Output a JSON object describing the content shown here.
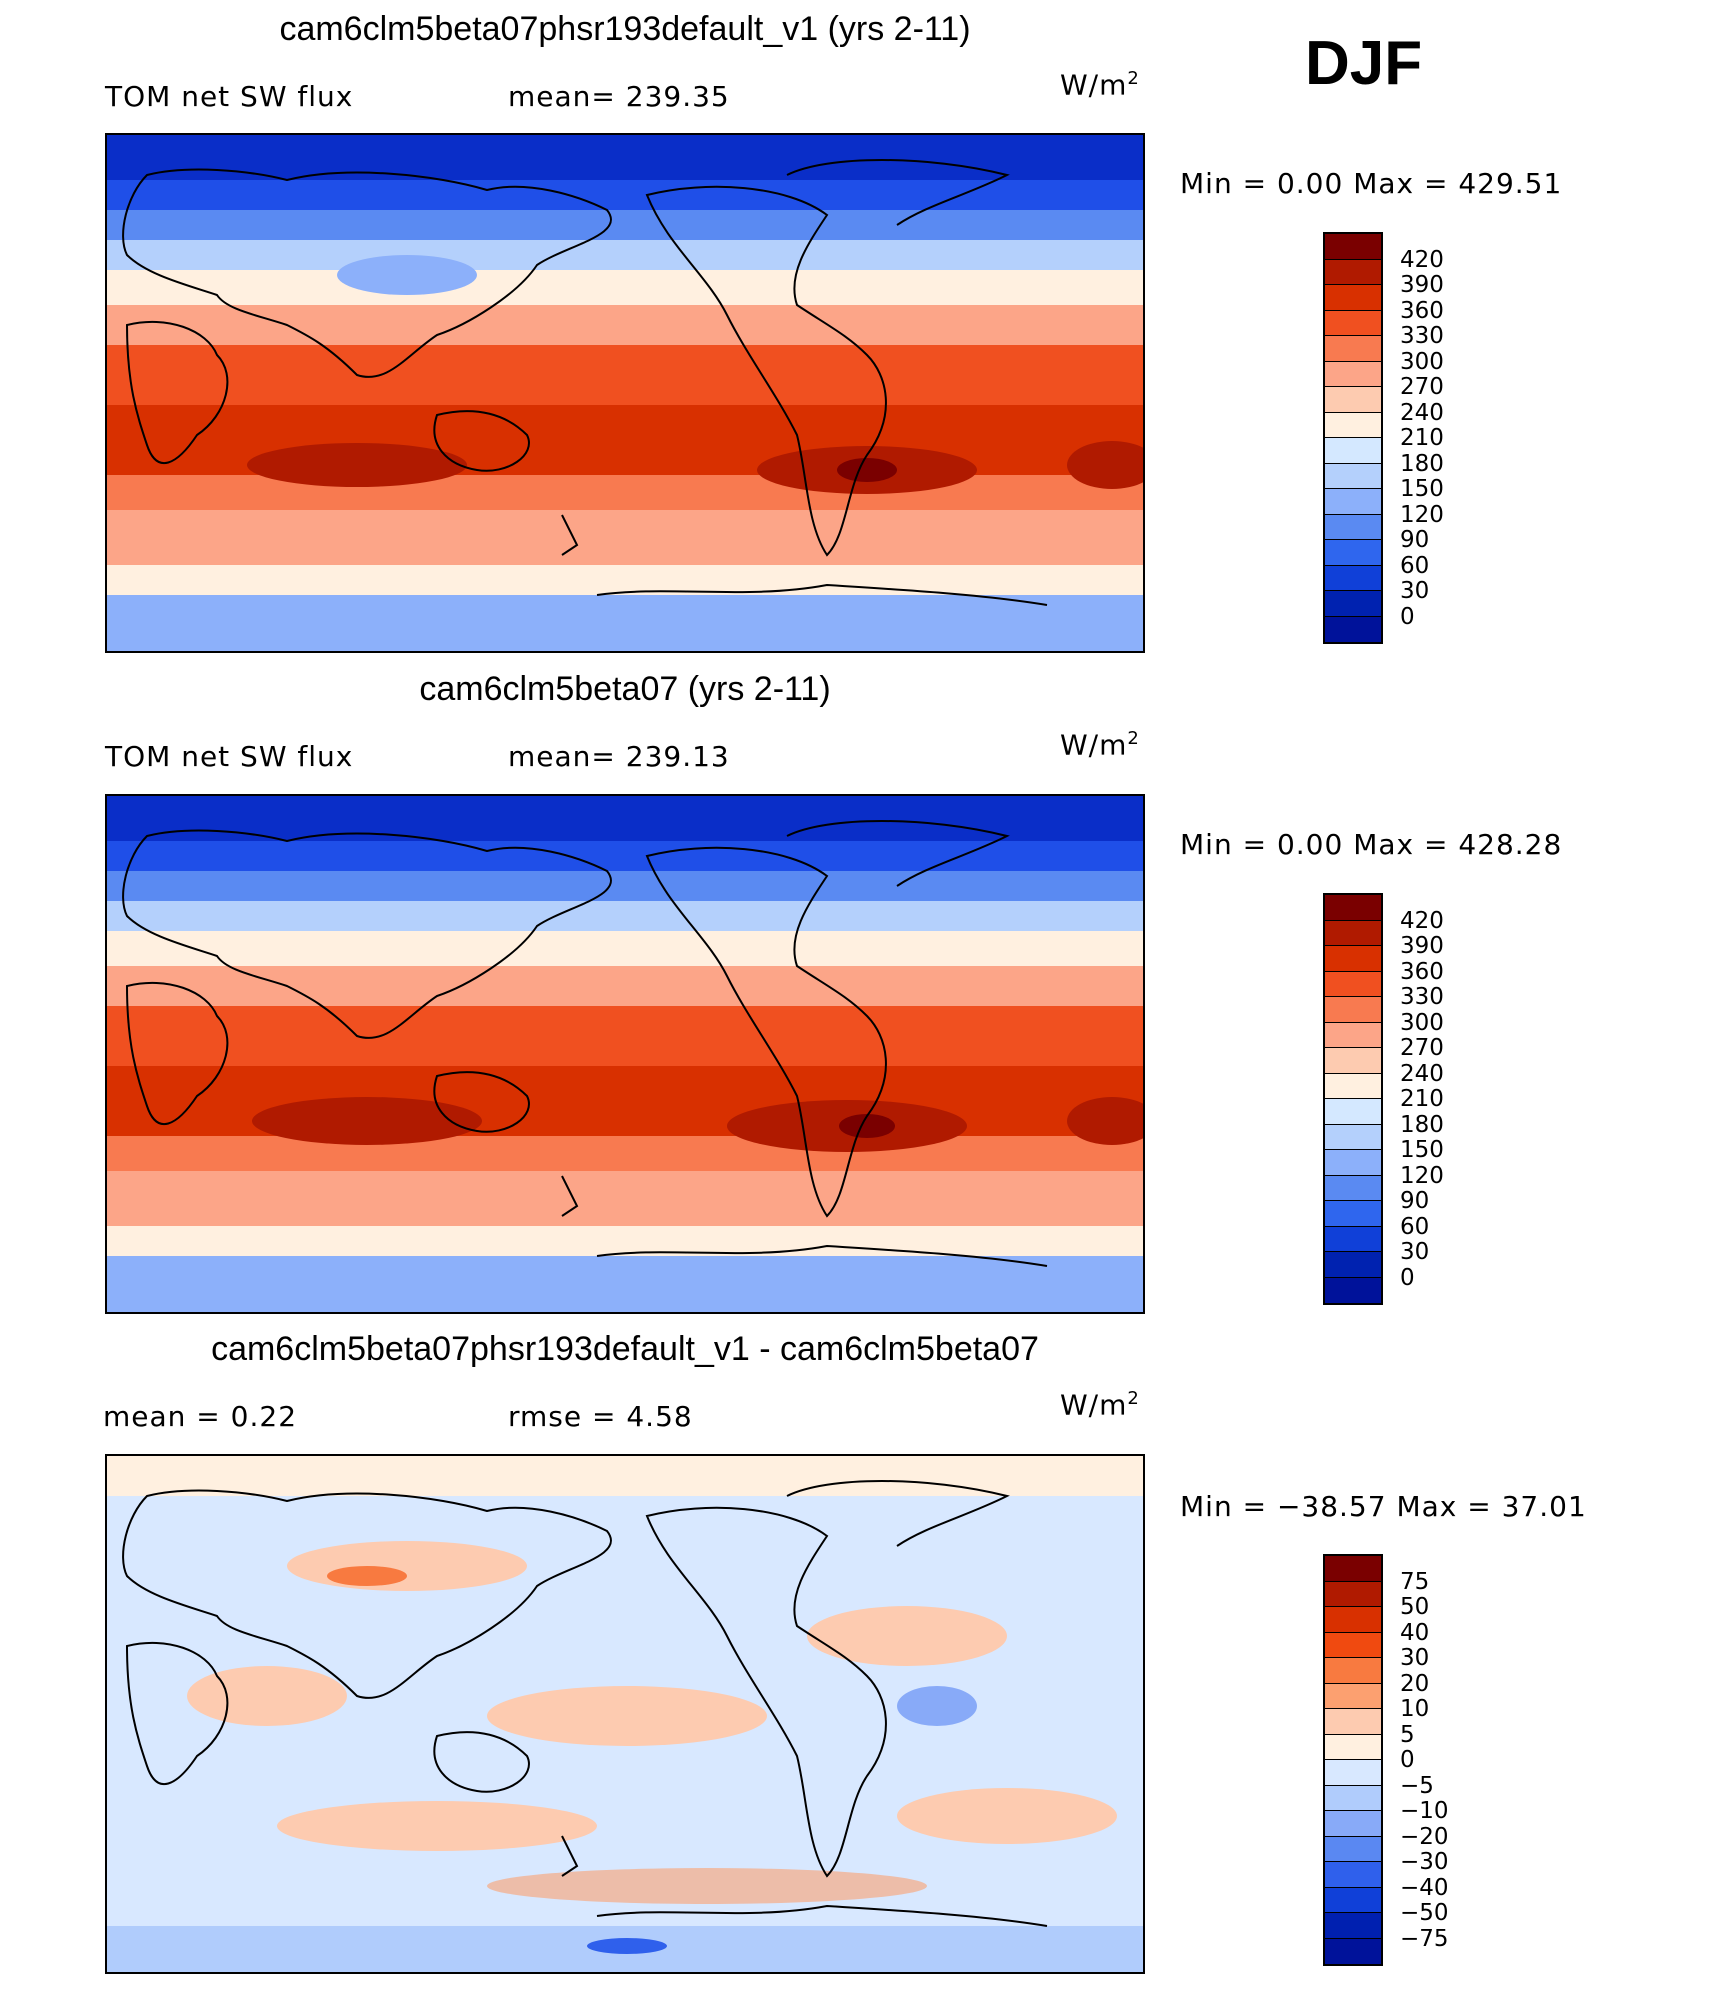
{
  "season": "DJF",
  "chart_data": [
    {
      "type": "heatmap",
      "title": "cam6clm5beta07phsr193default_v1 (yrs 2-11)",
      "left_label": "TOM net SW flux",
      "center_label": "mean= 239.35",
      "units": "W/m",
      "units_sup": "2",
      "mean": 239.35,
      "minmax_label": "Min =     0.00 Max  =  429.51",
      "min": 0.0,
      "max": 429.51,
      "colorbar_levels": [
        "420",
        "390",
        "360",
        "330",
        "300",
        "270",
        "240",
        "210",
        "180",
        "150",
        "120",
        "90",
        "60",
        "30",
        "0"
      ],
      "colorbar_colors": [
        "#7a0000",
        "#b01a00",
        "#d83000",
        "#f05020",
        "#f87a50",
        "#fca588",
        "#fdcbb0",
        "#fff0e0",
        "#d4e8ff",
        "#b4d0fc",
        "#8cb0fa",
        "#5a8af2",
        "#2f66ee",
        "#1040d8",
        "#0022b0",
        "#00129a"
      ]
    },
    {
      "type": "heatmap",
      "title": "cam6clm5beta07 (yrs 2-11)",
      "left_label": "TOM net SW flux",
      "center_label": "mean= 239.13",
      "units": "W/m",
      "units_sup": "2",
      "mean": 239.13,
      "minmax_label": "Min =     0.00 Max  =  428.28",
      "min": 0.0,
      "max": 428.28,
      "colorbar_levels": [
        "420",
        "390",
        "360",
        "330",
        "300",
        "270",
        "240",
        "210",
        "180",
        "150",
        "120",
        "90",
        "60",
        "30",
        "0"
      ],
      "colorbar_colors": [
        "#7a0000",
        "#b01a00",
        "#d83000",
        "#f05020",
        "#f87a50",
        "#fca588",
        "#fdcbb0",
        "#fff0e0",
        "#d4e8ff",
        "#b4d0fc",
        "#8cb0fa",
        "#5a8af2",
        "#2f66ee",
        "#1040d8",
        "#0022b0",
        "#00129a"
      ]
    },
    {
      "type": "heatmap",
      "title": "cam6clm5beta07phsr193default_v1 - cam6clm5beta07",
      "left_label": "mean  =     0.22",
      "center_label": "rmse  =     4.58",
      "units": "W/m",
      "units_sup": "2",
      "mean": 0.22,
      "rmse": 4.58,
      "minmax_label": "Min  = −38.57 Max  =    37.01",
      "min": -38.57,
      "max": 37.01,
      "colorbar_levels": [
        "75",
        "50",
        "40",
        "30",
        "20",
        "10",
        "5",
        "0",
        "−5",
        "−10",
        "−20",
        "−30",
        "−40",
        "−50",
        "−75"
      ],
      "colorbar_colors": [
        "#7a0000",
        "#b01a00",
        "#d83000",
        "#f04a10",
        "#f87a40",
        "#fca070",
        "#fdcbb0",
        "#fff0e0",
        "#d8e8ff",
        "#b0ccfc",
        "#88aaf8",
        "#5a88f2",
        "#2f60ec",
        "#1040d8",
        "#0020b0",
        "#00129a"
      ]
    }
  ]
}
